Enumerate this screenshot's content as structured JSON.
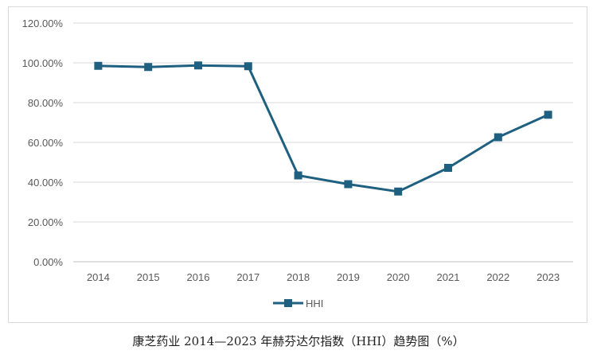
{
  "chart_data": {
    "type": "line",
    "x": [
      "2014",
      "2015",
      "2016",
      "2017",
      "2018",
      "2019",
      "2020",
      "2021",
      "2022",
      "2023"
    ],
    "series": [
      {
        "name": "HHI",
        "values": [
          98.5,
          97.9,
          98.7,
          98.3,
          43.4,
          39.0,
          35.3,
          47.2,
          62.6,
          73.9
        ],
        "color": "#1f6080",
        "marker": "square"
      }
    ],
    "ylim": [
      0,
      120
    ],
    "yticks": [
      0,
      20,
      40,
      60,
      80,
      100,
      120
    ],
    "ytick_labels": [
      "0.00%",
      "20.00%",
      "40.00%",
      "60.00%",
      "80.00%",
      "100.00%",
      "120.00%"
    ],
    "grid": "horizontal",
    "legend": "bottom-center"
  },
  "caption": "康芝药业 2014—2023 年赫芬达尔指数（HHI）趋势图（%）"
}
